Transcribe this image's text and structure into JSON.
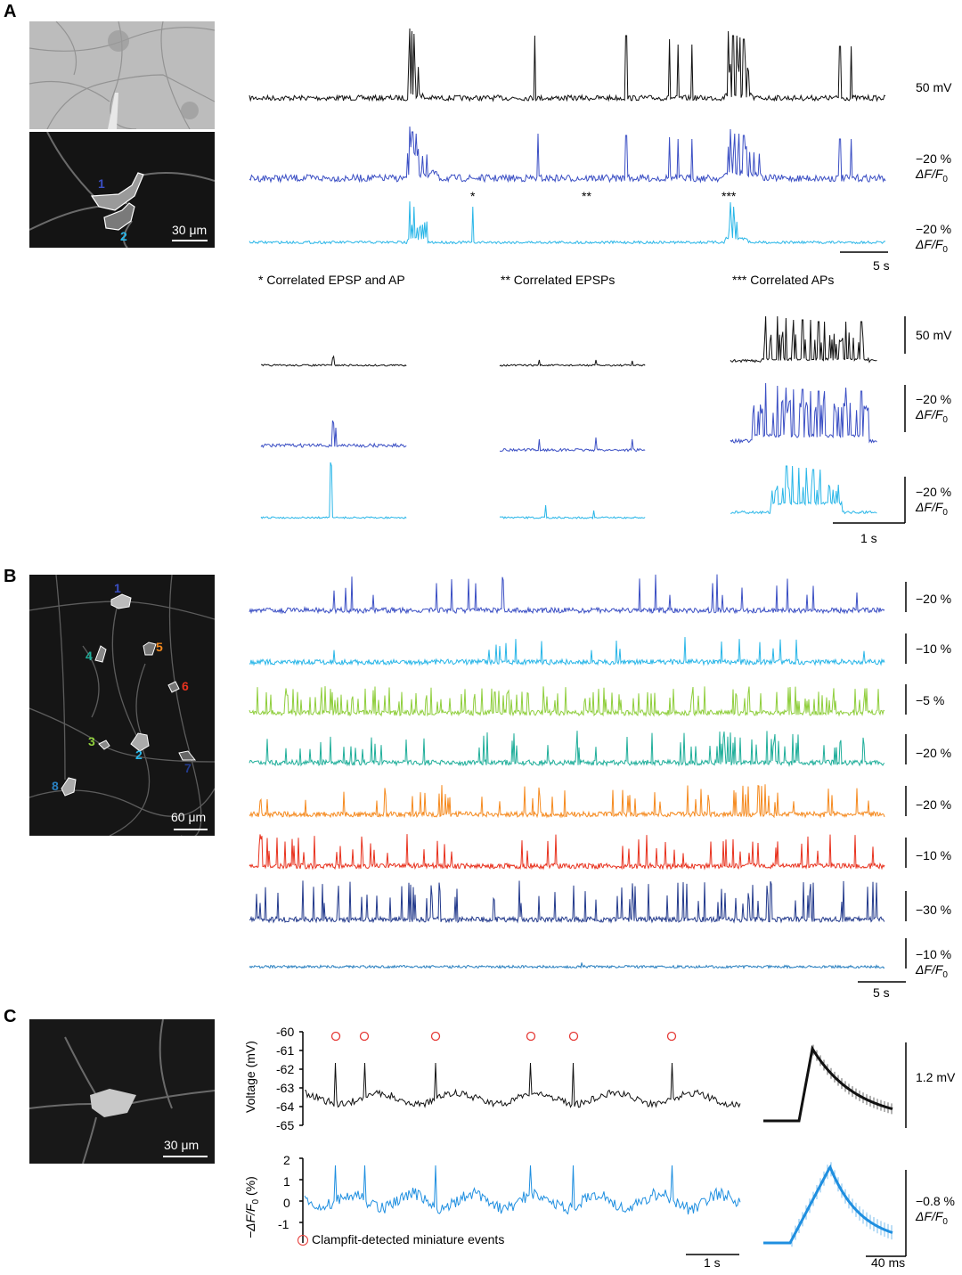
{
  "panel_a": {
    "letter": "A",
    "scale_bar_um": "30 μm",
    "roi_labels": [
      "1",
      "2"
    ],
    "scale_mv": "50 mV",
    "scale_df1": "−20 %",
    "scale_df2": "−20 %",
    "df_label": "ΔF/F",
    "df_sub": "0",
    "time_scale": "5 s",
    "markers": [
      "*",
      "**",
      "***"
    ],
    "captions": [
      "* Correlated EPSP and AP",
      "** Correlated EPSPs",
      "*** Correlated APs"
    ],
    "inset_scale_mv": "50 mV",
    "inset_scale_df1": "−20 %",
    "inset_scale_df2": "−20 %",
    "inset_time_scale": "1 s"
  },
  "panel_b": {
    "letter": "B",
    "scale_bar_um": "60 μm",
    "roi_labels": [
      "1",
      "2",
      "3",
      "4",
      "5",
      "6",
      "7",
      "8"
    ],
    "roi_colors": [
      "#3b4fc4",
      "#29b6e8",
      "#8fce3c",
      "#1fae9a",
      "#f58a1f",
      "#e8321e",
      "#233a8c",
      "#2a80c0"
    ],
    "scales": [
      "−20 %",
      "−10 %",
      "−5 %",
      "−20 %",
      "−20 %",
      "−10 %",
      "−30 %",
      "−10 %"
    ],
    "df_label": "ΔF/F",
    "df_sub": "0",
    "time_scale": "5 s"
  },
  "panel_c": {
    "letter": "C",
    "scale_bar_um": "30 μm",
    "voltage_axis_label": "Voltage (mV)",
    "voltage_ticks": [
      "-60",
      "-61",
      "-62",
      "-63",
      "-64",
      "-65"
    ],
    "df_axis_label": "−ΔF/F",
    "df_axis_sub": "0",
    "df_axis_unit": "(%)",
    "df_ticks": [
      "2",
      "1",
      "0",
      "-1"
    ],
    "legend_text": "Clampfit-detected miniature events",
    "time_scale": "1 s",
    "avg_scale_mv": "1.2 mV",
    "avg_scale_df": "−0.8 %",
    "avg_time_scale": "40 ms"
  },
  "colors": {
    "black": "#111111",
    "roi1_blue": "#3b4fc4",
    "roi2_cyan": "#29b6e8",
    "c_blue": "#1f8fe0",
    "event_red": "#e53935"
  }
}
